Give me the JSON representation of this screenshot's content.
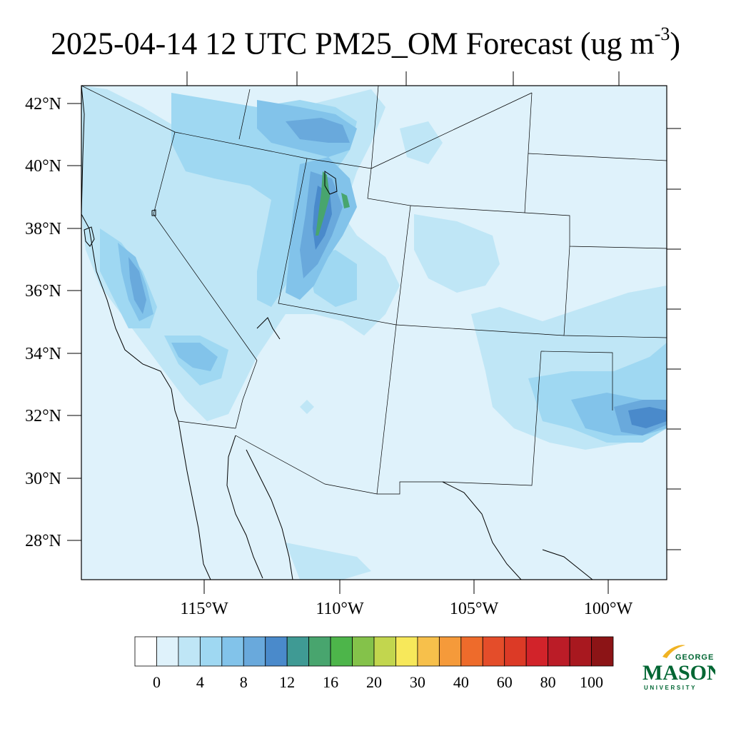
{
  "title": {
    "main": "2025-04-14 12 UTC PM25_OM Forecast (ug m",
    "superscript": "-3",
    "close": ")"
  },
  "axes": {
    "lat_labels": [
      "42°N",
      "40°N",
      "38°N",
      "36°N",
      "34°N",
      "32°N",
      "30°N",
      "28°N"
    ],
    "lon_labels": [
      "115°W",
      "110°W",
      "105°W",
      "100°W"
    ]
  },
  "colorbar": {
    "colors": [
      "#ffffff",
      "#dff2fb",
      "#bfe6f6",
      "#9fd8f2",
      "#82c3ea",
      "#69a9dc",
      "#4a8acb",
      "#3f9a94",
      "#48a56e",
      "#4db54a",
      "#84c24a",
      "#c2d64e",
      "#f7e85a",
      "#f7c04b",
      "#f59a3a",
      "#ee6b2b",
      "#e44d2a",
      "#dc3a26",
      "#d2232a",
      "#bb1c27",
      "#a8181f",
      "#8c1416"
    ],
    "labels": [
      "0",
      "4",
      "8",
      "12",
      "16",
      "20",
      "30",
      "40",
      "60",
      "80",
      "100"
    ]
  },
  "logo": {
    "line1": "GEORGE",
    "line2": "MASON",
    "line3": "UNIVERSITY",
    "color": "#006633",
    "accent": "#f0b323"
  },
  "colors": {
    "base_fill": "#dff2fb",
    "level1": "#bfe6f6",
    "level2": "#9fd8f2",
    "level3": "#82c3ea",
    "level4": "#69a9dc",
    "level5": "#4a8acb",
    "green": "#48a56e"
  }
}
